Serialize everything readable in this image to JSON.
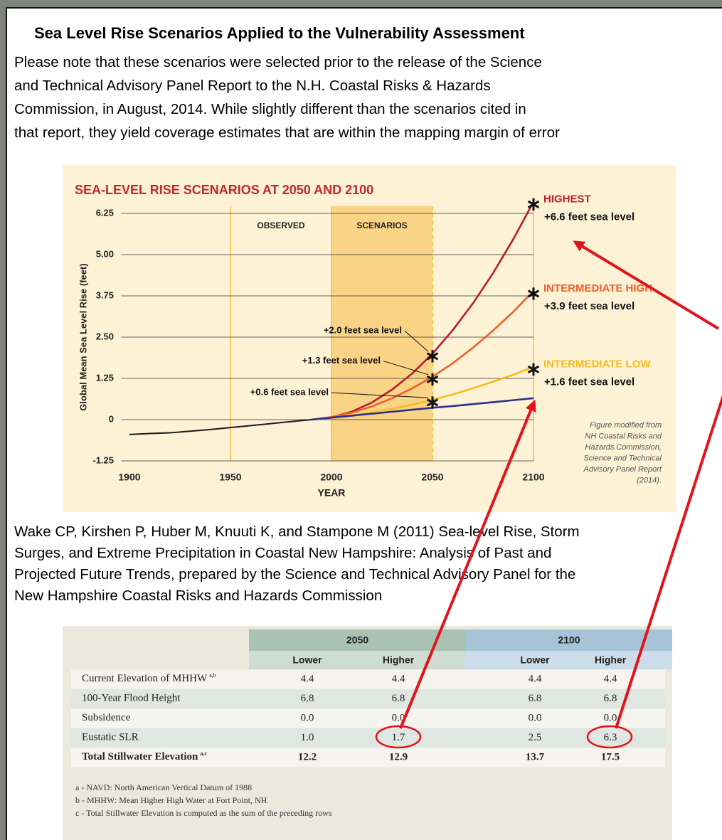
{
  "title": "Sea Level Rise Scenarios Applied to the Vulnerability Assessment",
  "note": [
    "Please note that these scenarios were selected prior to the release of the Science",
    "and Technical Advisory Panel Report to the N.H. Coastal Risks & Hazards",
    "Commission, in August, 2014. While slightly different than the scenarios cited in",
    "that report, they yield coverage estimates that are within the mapping margin of error"
  ],
  "chart_data": {
    "type": "line",
    "title": "SEA-LEVEL RISE SCENARIOS AT 2050 AND 2100",
    "y_label": "Global Mean Sea Level Rise (feet)",
    "x_label": "YEAR",
    "x": [
      1900,
      1910,
      1920,
      1930,
      1940,
      1950,
      1960,
      1970,
      1980,
      1990,
      2000,
      2010,
      2020,
      2030,
      2040,
      2050,
      2060,
      2070,
      2080,
      2090,
      2100
    ],
    "xlim": [
      1896,
      2100
    ],
    "xticks": [
      1900,
      1950,
      2000,
      2050,
      2100
    ],
    "ylim": [
      -1.25,
      6.25
    ],
    "yticks": [
      {
        "value": -1.25,
        "label": "-1.25"
      },
      0,
      1.25,
      {
        "value": 2.5,
        "label": "2.50"
      },
      3.75,
      {
        "value": 5,
        "label": "5.00"
      },
      6.25
    ],
    "grid": true,
    "regions": [
      {
        "label": "OBSERVED",
        "range": [
          1950,
          2000
        ]
      },
      {
        "label": "SCENARIOS",
        "range": [
          2000,
          2050
        ],
        "shaded": true
      }
    ],
    "series": [
      {
        "color": "#1a1a1a",
        "values": [
          -0.45,
          -0.42,
          -0.4,
          -0.35,
          -0.3,
          -0.24,
          -0.18,
          -0.12,
          -0.06,
          0,
          null,
          null,
          null,
          null,
          null,
          null,
          null,
          null,
          null,
          null,
          null
        ]
      },
      {
        "name": "HIGHEST",
        "color": "#b81e2e",
        "values": [
          null,
          null,
          null,
          null,
          null,
          null,
          null,
          null,
          null,
          0,
          0.07,
          0.24,
          0.52,
          0.91,
          1.4,
          2.0,
          2.71,
          3.52,
          4.44,
          5.47,
          6.6
        ],
        "annotations": [
          {
            "x": 2050,
            "text": "+2.0 feet sea level"
          },
          {
            "x": 2100,
            "text": "+6.6 feet sea level"
          }
        ]
      },
      {
        "name": "INTERMEDIATE HIGH",
        "color": "#f0602a",
        "values": [
          null,
          null,
          null,
          null,
          null,
          null,
          null,
          null,
          null,
          0,
          0.08,
          0.21,
          0.4,
          0.65,
          0.95,
          1.3,
          1.71,
          2.18,
          2.7,
          3.27,
          3.9
        ],
        "annotations": [
          {
            "x": 2050,
            "text": "+1.3 feet sea level"
          },
          {
            "x": 2100,
            "text": "+3.9 feet sea level"
          }
        ]
      },
      {
        "name": "INTERMEDIATE LOW",
        "color": "#f5bd1f",
        "values": [
          null,
          null,
          null,
          null,
          null,
          null,
          null,
          null,
          null,
          0,
          0.05,
          0.13,
          0.22,
          0.33,
          0.45,
          0.6,
          0.76,
          0.95,
          1.15,
          1.36,
          1.6
        ],
        "annotations": [
          {
            "x": 2050,
            "text": "+0.6 feet sea level"
          },
          {
            "x": 2100,
            "text": "+1.6 feet sea level"
          }
        ]
      },
      {
        "color": "#2b2f8f",
        "values": [
          null,
          null,
          null,
          null,
          null,
          null,
          null,
          null,
          null,
          0,
          0.06,
          0.12,
          0.18,
          0.24,
          0.3,
          0.36,
          0.41,
          0.47,
          0.53,
          0.59,
          0.65
        ]
      }
    ],
    "source_note": [
      "Figure modified from",
      "NH Coastal Risks and",
      "Hazards Commission,",
      "Science and Technical",
      "Advisory Panel Report",
      "(2014)."
    ]
  },
  "citation": [
    "Wake CP, Kirshen P, Huber M, Knuuti K, and Stampone M (2011) Sea-level Rise, Storm",
    "Surges, and Extreme Precipitation in Coastal New Hampshire: Analysis of Past and",
    "Projected Future Trends, prepared by the Science and Technical Advisory Panel for the",
    "New Hampshire Coastal Risks and Hazards Commission"
  ],
  "table": {
    "groups": [
      "2050",
      "2100"
    ],
    "columns": [
      "Lower",
      "Higher",
      "Lower",
      "Higher"
    ],
    "rows": [
      {
        "label": "Current Elevation of MHHW",
        "note": "a,b",
        "cells": [
          "4.4",
          "4.4",
          "4.4",
          "4.4"
        ]
      },
      {
        "label": "100-Year Flood Height",
        "cells": [
          "6.8",
          "6.8",
          "6.8",
          "6.8"
        ]
      },
      {
        "label": "Subsidence",
        "cells": [
          "0.0",
          "0.0",
          "0.0",
          "0.0"
        ]
      },
      {
        "label": "Eustatic SLR",
        "cells": [
          "1.0",
          "1.7",
          "2.5",
          "6.3"
        ]
      },
      {
        "label": "Total Stillwater Elevation",
        "note": "a,c",
        "cells": [
          "12.2",
          "12.9",
          "13.7",
          "17.5"
        ],
        "bold": true
      }
    ],
    "footnotes": [
      "a - NAVD: North American Vertical Datum of 1988",
      "b - MHHW: Mean Higher High Water at Fort Point, NH",
      "c - Total Stillwater Elevation is computed as the sum of the preceding rows"
    ]
  }
}
